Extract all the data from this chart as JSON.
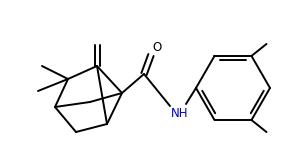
{
  "background": "#ffffff",
  "line_color": "#000000",
  "nh_color": "#0000cd",
  "line_width": 1.4
}
